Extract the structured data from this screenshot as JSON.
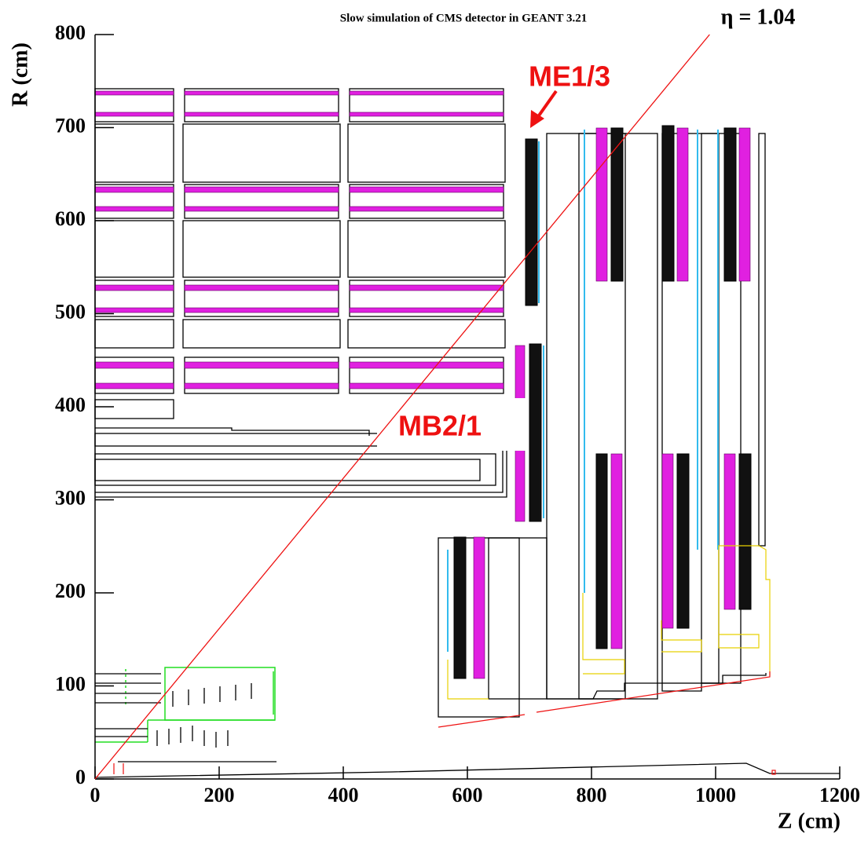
{
  "chart_data": {
    "type": "line",
    "title": "Slow simulation of CMS detector in GEANT 3.21",
    "x_label": "Z (cm)",
    "y_label": "R (cm)",
    "annotations": [
      "ME1/3",
      "MB2/1"
    ],
    "eta_line": {
      "value": 1.04,
      "label": "η = 1.04",
      "color": "#ee1111"
    },
    "xlim": [
      0,
      1200
    ],
    "ylim": [
      0,
      800
    ],
    "xticks": [
      0,
      200,
      400,
      600,
      800,
      1000,
      1200
    ],
    "yticks": [
      0,
      100,
      200,
      300,
      400,
      500,
      600,
      700,
      800
    ]
  }
}
